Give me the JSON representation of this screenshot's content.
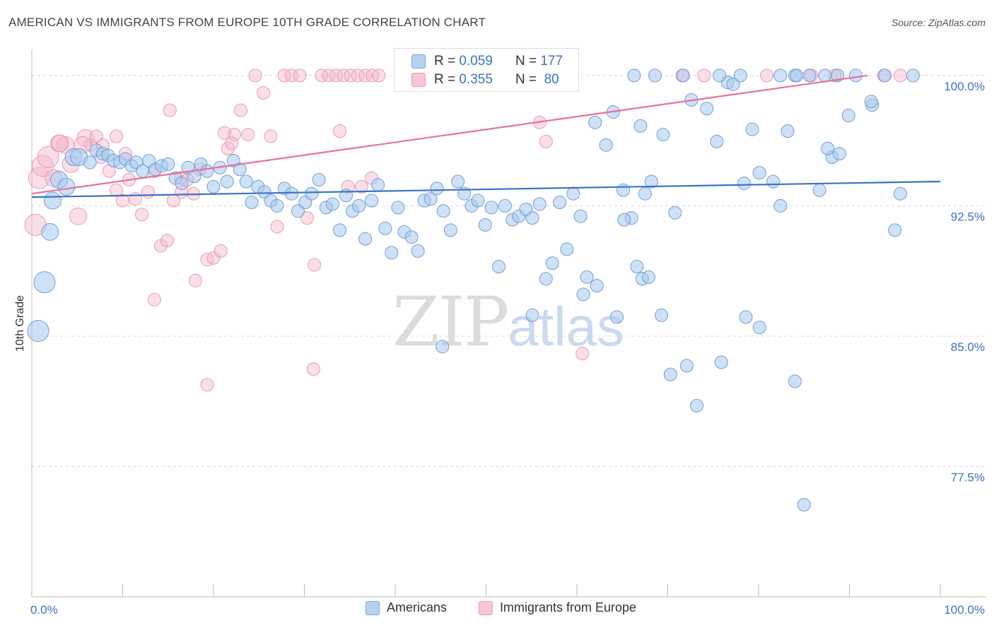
{
  "header": {
    "title": "AMERICAN VS IMMIGRANTS FROM EUROPE 10TH GRADE CORRELATION CHART",
    "source": "Source: ZipAtlas.com"
  },
  "watermark": {
    "zip": "ZIP",
    "atlas": "atlas"
  },
  "stats": [
    {
      "r_label": "R =",
      "r_value": "0.059",
      "n_label": "N =",
      "n_value": "177"
    },
    {
      "r_label": "R =",
      "r_value": "0.355",
      "n_label": "N =",
      "n_value": "80"
    }
  ],
  "legend": {
    "americans": "Americans",
    "immigrants": "Immigrants from Europe"
  },
  "colors": {
    "blue": "#3a73c8",
    "blue_fill": "#a8c8ee",
    "pink": "#e8709a",
    "pink_fill": "#f5b8cb"
  },
  "chart_data": {
    "type": "scatter",
    "ylabel": "10th Grade",
    "xlabel": "",
    "xlim": [
      0,
      100
    ],
    "ylim": [
      70,
      101.5
    ],
    "x_tick_labels": [
      "0.0%",
      "100.0%"
    ],
    "y_ticks": [
      {
        "value": 100,
        "label": "100.0%"
      },
      {
        "value": 92.5,
        "label": "92.5%"
      },
      {
        "value": 85,
        "label": "85.0%"
      },
      {
        "value": 77.5,
        "label": "77.5%"
      }
    ],
    "series": [
      {
        "name": "Americans",
        "trend": [
          [
            0,
            93.0
          ],
          [
            100,
            93.9
          ]
        ],
        "points": [
          [
            0.7,
            85.3
          ],
          [
            1.4,
            88.1
          ],
          [
            2.0,
            91.0
          ],
          [
            2.3,
            92.8
          ],
          [
            3.0,
            94.0
          ],
          [
            3.8,
            93.6
          ],
          [
            4.6,
            95.3
          ],
          [
            5.2,
            95.3
          ],
          [
            6.4,
            95.0
          ],
          [
            7.1,
            95.7
          ],
          [
            7.8,
            95.5
          ],
          [
            8.4,
            95.4
          ],
          [
            9.0,
            95.1
          ],
          [
            9.7,
            95.0
          ],
          [
            10.3,
            95.2
          ],
          [
            11.0,
            94.8
          ],
          [
            11.5,
            95.0
          ],
          [
            12.2,
            94.5
          ],
          [
            12.9,
            95.1
          ],
          [
            13.6,
            94.6
          ],
          [
            14.3,
            94.8
          ],
          [
            15.0,
            94.9
          ],
          [
            15.8,
            94.1
          ],
          [
            16.5,
            93.8
          ],
          [
            17.2,
            94.7
          ],
          [
            17.9,
            94.2
          ],
          [
            18.6,
            94.9
          ],
          [
            19.3,
            94.5
          ],
          [
            20.0,
            93.6
          ],
          [
            20.7,
            94.7
          ],
          [
            21.5,
            93.9
          ],
          [
            22.2,
            95.1
          ],
          [
            22.9,
            94.6
          ],
          [
            23.6,
            93.9
          ],
          [
            24.2,
            92.7
          ],
          [
            24.9,
            93.6
          ],
          [
            25.6,
            93.3
          ],
          [
            26.3,
            92.8
          ],
          [
            27.0,
            92.5
          ],
          [
            27.8,
            93.5
          ],
          [
            28.6,
            93.2
          ],
          [
            29.3,
            92.2
          ],
          [
            30.1,
            92.7
          ],
          [
            30.8,
            93.2
          ],
          [
            31.6,
            94.0
          ],
          [
            32.4,
            92.4
          ],
          [
            33.1,
            92.6
          ],
          [
            33.9,
            91.1
          ],
          [
            34.6,
            93.1
          ],
          [
            35.3,
            92.2
          ],
          [
            36.0,
            92.5
          ],
          [
            36.7,
            90.6
          ],
          [
            37.4,
            92.8
          ],
          [
            38.1,
            93.7
          ],
          [
            38.9,
            91.2
          ],
          [
            39.6,
            89.8
          ],
          [
            40.3,
            92.4
          ],
          [
            41.0,
            91.0
          ],
          [
            41.8,
            90.7
          ],
          [
            42.5,
            89.9
          ],
          [
            43.2,
            92.8
          ],
          [
            43.9,
            92.9
          ],
          [
            44.6,
            93.5
          ],
          [
            45.3,
            92.2
          ],
          [
            46.1,
            91.1
          ],
          [
            46.9,
            93.9
          ],
          [
            47.6,
            93.2
          ],
          [
            48.4,
            92.5
          ],
          [
            49.1,
            92.8
          ],
          [
            49.9,
            91.4
          ],
          [
            50.6,
            92.4
          ],
          [
            51.4,
            89.0
          ],
          [
            52.1,
            92.5
          ],
          [
            52.9,
            91.7
          ],
          [
            53.6,
            91.9
          ],
          [
            54.4,
            92.3
          ],
          [
            55.1,
            91.8
          ],
          [
            55.9,
            92.6
          ],
          [
            56.6,
            88.3
          ],
          [
            57.3,
            89.2
          ],
          [
            58.1,
            92.7
          ],
          [
            58.9,
            90.0
          ],
          [
            59.6,
            93.2
          ],
          [
            60.4,
            91.9
          ],
          [
            61.1,
            88.4
          ],
          [
            62.0,
            97.3
          ],
          [
            63.2,
            96.0
          ],
          [
            64.0,
            97.9
          ],
          [
            65.1,
            93.4
          ],
          [
            66.0,
            91.8
          ],
          [
            67.0,
            97.1
          ],
          [
            67.5,
            93.2
          ],
          [
            68.2,
            93.9
          ],
          [
            69.5,
            96.6
          ],
          [
            70.8,
            92.1
          ],
          [
            72.6,
            98.6
          ],
          [
            74.3,
            98.1
          ],
          [
            75.4,
            96.2
          ],
          [
            76.6,
            99.6
          ],
          [
            77.2,
            99.5
          ],
          [
            78.4,
            93.8
          ],
          [
            79.3,
            96.9
          ],
          [
            80.1,
            94.4
          ],
          [
            81.6,
            93.9
          ],
          [
            82.4,
            92.5
          ],
          [
            83.2,
            96.8
          ],
          [
            84.0,
            100.0
          ],
          [
            85.6,
            100.0
          ],
          [
            86.7,
            93.4
          ],
          [
            88.1,
            95.3
          ],
          [
            88.9,
            95.5
          ],
          [
            89.9,
            97.7
          ],
          [
            90.7,
            100.0
          ],
          [
            92.5,
            98.3
          ],
          [
            93.9,
            100.0
          ],
          [
            95.6,
            93.2
          ],
          [
            66.3,
            100.0
          ],
          [
            68.6,
            100.0
          ],
          [
            71.7,
            100.0
          ],
          [
            75.7,
            100.0
          ],
          [
            78.0,
            100.0
          ],
          [
            82.4,
            100.0
          ],
          [
            84.2,
            100.0
          ],
          [
            87.3,
            100.0
          ],
          [
            88.7,
            100.0
          ],
          [
            97.0,
            100.0
          ],
          [
            45.2,
            84.4
          ],
          [
            55.1,
            86.2
          ],
          [
            64.4,
            86.1
          ],
          [
            60.7,
            87.4
          ],
          [
            62.2,
            87.9
          ],
          [
            67.2,
            88.3
          ],
          [
            65.2,
            91.7
          ],
          [
            66.6,
            89.0
          ],
          [
            67.9,
            88.4
          ],
          [
            69.3,
            86.2
          ],
          [
            70.3,
            82.8
          ],
          [
            72.1,
            83.3
          ],
          [
            73.2,
            81.0
          ],
          [
            75.9,
            83.5
          ],
          [
            78.6,
            86.1
          ],
          [
            80.1,
            85.5
          ],
          [
            84.0,
            82.4
          ],
          [
            85.0,
            75.3
          ],
          [
            87.6,
            95.8
          ],
          [
            92.4,
            98.5
          ],
          [
            95.0,
            91.1
          ]
        ]
      },
      {
        "name": "Immigrants from Europe",
        "trend": [
          [
            0,
            93.2
          ],
          [
            92.0,
            100.0
          ]
        ],
        "points": [
          [
            0.4,
            91.4
          ],
          [
            0.8,
            94.1
          ],
          [
            1.2,
            94.8
          ],
          [
            1.8,
            95.3
          ],
          [
            2.4,
            94.1
          ],
          [
            3.0,
            96.1
          ],
          [
            3.7,
            96.0
          ],
          [
            4.3,
            94.9
          ],
          [
            5.1,
            91.9
          ],
          [
            5.9,
            96.4
          ],
          [
            6.5,
            96.0
          ],
          [
            7.1,
            96.5
          ],
          [
            7.8,
            96.0
          ],
          [
            8.5,
            94.5
          ],
          [
            9.3,
            93.4
          ],
          [
            10.0,
            92.8
          ],
          [
            10.7,
            94.0
          ],
          [
            11.4,
            92.9
          ],
          [
            12.1,
            92.0
          ],
          [
            12.8,
            93.3
          ],
          [
            13.5,
            94.5
          ],
          [
            14.2,
            90.2
          ],
          [
            14.9,
            90.5
          ],
          [
            15.6,
            92.8
          ],
          [
            16.4,
            94.1
          ],
          [
            17.1,
            94.0
          ],
          [
            17.8,
            93.2
          ],
          [
            18.5,
            94.6
          ],
          [
            19.3,
            89.4
          ],
          [
            20.0,
            89.5
          ],
          [
            20.8,
            89.9
          ],
          [
            21.6,
            95.8
          ],
          [
            22.3,
            96.6
          ],
          [
            23.0,
            98.0
          ],
          [
            23.8,
            96.6
          ],
          [
            24.6,
            100.0
          ],
          [
            25.5,
            99.0
          ],
          [
            26.3,
            96.5
          ],
          [
            27.0,
            91.3
          ],
          [
            27.8,
            100.0
          ],
          [
            28.6,
            100.0
          ],
          [
            29.5,
            100.0
          ],
          [
            30.3,
            91.8
          ],
          [
            31.1,
            89.1
          ],
          [
            31.9,
            100.0
          ],
          [
            32.7,
            100.0
          ],
          [
            33.5,
            100.0
          ],
          [
            34.3,
            100.0
          ],
          [
            35.1,
            100.0
          ],
          [
            35.9,
            100.0
          ],
          [
            36.7,
            100.0
          ],
          [
            37.5,
            100.0
          ],
          [
            38.2,
            100.0
          ],
          [
            13.5,
            87.1
          ],
          [
            15.2,
            98.0
          ],
          [
            16.5,
            93.3
          ],
          [
            18.0,
            88.2
          ],
          [
            19.3,
            82.2
          ],
          [
            21.2,
            96.7
          ],
          [
            22.0,
            96.1
          ],
          [
            31.0,
            83.1
          ],
          [
            33.9,
            96.8
          ],
          [
            34.8,
            93.6
          ],
          [
            36.3,
            93.6
          ],
          [
            37.4,
            94.1
          ],
          [
            55.9,
            97.3
          ],
          [
            56.6,
            96.2
          ],
          [
            60.6,
            84.0
          ],
          [
            71.6,
            100.0
          ],
          [
            74.0,
            100.0
          ],
          [
            80.9,
            100.0
          ],
          [
            85.8,
            100.0
          ],
          [
            88.4,
            100.0
          ],
          [
            93.8,
            100.0
          ],
          [
            95.6,
            100.0
          ],
          [
            3.1,
            96.1
          ],
          [
            5.6,
            96.0
          ],
          [
            7.6,
            95.3
          ],
          [
            9.3,
            96.5
          ],
          [
            10.3,
            95.5
          ]
        ]
      }
    ],
    "legend_position": "bottom-center",
    "grid": true
  }
}
